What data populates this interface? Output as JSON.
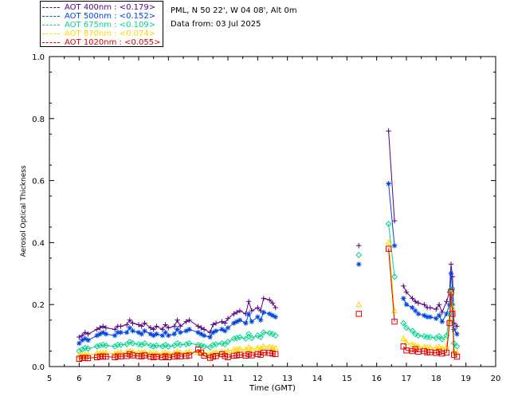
{
  "legend": {
    "items": [
      {
        "label": "AOT  400nm : <0.179>",
        "color": "#55007f"
      },
      {
        "label": "AOT  500nm : <0.152>",
        "color": "#0044dd"
      },
      {
        "label": "AOT  675nm : <0.109>",
        "color": "#00d48c"
      },
      {
        "label": "AOT  870nm : <0.074>",
        "color": "#ffd700"
      },
      {
        "label": "AOT 1020nm : <0.055>",
        "color": "#e00000"
      }
    ]
  },
  "info": {
    "location": "PML, N 50 22', W 04 08', Alt 0m",
    "date": "Data from: 03 Jul 2025"
  },
  "chart_data": {
    "type": "scatter",
    "title": "",
    "xlabel": "Time (GMT)",
    "ylabel": "Aerosol Optical Thickness",
    "xlim": [
      5,
      20
    ],
    "ylim": [
      0,
      1.0
    ],
    "xticks": [
      "5",
      "6",
      "7",
      "8",
      "9",
      "10",
      "11",
      "12",
      "13",
      "14",
      "15",
      "16",
      "17",
      "18",
      "19",
      "20"
    ],
    "yticks": [
      "0.0",
      "0.2",
      "0.4",
      "0.6",
      "0.8",
      "1.0"
    ],
    "grid": false,
    "legend_position": "top-left",
    "segments": [
      [
        6.0,
        12.7
      ],
      [
        15.4,
        15.4
      ],
      [
        16.4,
        16.65
      ],
      [
        16.9,
        18.7
      ]
    ],
    "series": [
      {
        "name": "AOT  400nm : <0.179>",
        "color": "#55007f",
        "marker": "plus",
        "x": [
          6.0,
          6.1,
          6.2,
          6.3,
          6.6,
          6.7,
          6.8,
          6.9,
          7.2,
          7.3,
          7.4,
          7.6,
          7.7,
          7.8,
          8.0,
          8.1,
          8.2,
          8.4,
          8.5,
          8.6,
          8.8,
          8.9,
          9.0,
          9.2,
          9.3,
          9.4,
          9.6,
          9.7,
          10.0,
          10.1,
          10.2,
          10.4,
          10.5,
          10.6,
          10.8,
          10.9,
          11.0,
          11.2,
          11.3,
          11.4,
          11.6,
          11.7,
          11.8,
          12.0,
          12.1,
          12.2,
          12.4,
          12.5,
          12.6,
          15.4,
          16.4,
          16.6,
          16.9,
          17.0,
          17.2,
          17.3,
          17.4,
          17.6,
          17.7,
          17.8,
          18.0,
          18.1,
          18.2,
          18.35,
          18.45,
          18.5,
          18.55,
          18.6,
          18.7
        ],
        "y": [
          0.095,
          0.1,
          0.11,
          0.105,
          0.12,
          0.125,
          0.13,
          0.125,
          0.12,
          0.13,
          0.13,
          0.135,
          0.15,
          0.14,
          0.135,
          0.13,
          0.14,
          0.125,
          0.12,
          0.13,
          0.12,
          0.135,
          0.125,
          0.13,
          0.15,
          0.13,
          0.145,
          0.15,
          0.13,
          0.125,
          0.12,
          0.11,
          0.135,
          0.14,
          0.145,
          0.14,
          0.155,
          0.17,
          0.175,
          0.18,
          0.17,
          0.21,
          0.18,
          0.19,
          0.18,
          0.22,
          0.215,
          0.205,
          0.19,
          0.39,
          0.76,
          0.47,
          0.26,
          0.24,
          0.22,
          0.21,
          0.205,
          0.2,
          0.19,
          0.19,
          0.185,
          0.2,
          0.175,
          0.21,
          0.24,
          0.33,
          0.29,
          0.14,
          0.13
        ]
      },
      {
        "name": "AOT  500nm : <0.152>",
        "color": "#0044dd",
        "marker": "asterisk",
        "x": [
          6.0,
          6.1,
          6.2,
          6.3,
          6.6,
          6.7,
          6.8,
          6.9,
          7.2,
          7.3,
          7.4,
          7.6,
          7.7,
          7.8,
          8.0,
          8.1,
          8.2,
          8.4,
          8.5,
          8.6,
          8.8,
          8.9,
          9.0,
          9.2,
          9.3,
          9.4,
          9.6,
          9.7,
          10.0,
          10.1,
          10.2,
          10.4,
          10.5,
          10.6,
          10.8,
          10.9,
          11.0,
          11.2,
          11.3,
          11.4,
          11.6,
          11.7,
          11.8,
          12.0,
          12.1,
          12.2,
          12.4,
          12.5,
          12.6,
          15.4,
          16.4,
          16.6,
          16.9,
          17.0,
          17.2,
          17.3,
          17.4,
          17.6,
          17.7,
          17.8,
          18.0,
          18.1,
          18.2,
          18.35,
          18.45,
          18.5,
          18.55,
          18.6,
          18.7
        ],
        "y": [
          0.075,
          0.085,
          0.09,
          0.085,
          0.1,
          0.105,
          0.11,
          0.105,
          0.1,
          0.11,
          0.11,
          0.11,
          0.125,
          0.115,
          0.11,
          0.105,
          0.115,
          0.105,
          0.1,
          0.105,
          0.1,
          0.11,
          0.1,
          0.105,
          0.12,
          0.11,
          0.115,
          0.12,
          0.11,
          0.105,
          0.1,
          0.095,
          0.11,
          0.115,
          0.12,
          0.115,
          0.125,
          0.14,
          0.145,
          0.15,
          0.14,
          0.17,
          0.145,
          0.16,
          0.15,
          0.175,
          0.17,
          0.165,
          0.16,
          0.33,
          0.59,
          0.39,
          0.22,
          0.2,
          0.19,
          0.18,
          0.17,
          0.165,
          0.16,
          0.16,
          0.155,
          0.165,
          0.145,
          0.17,
          0.2,
          0.3,
          0.25,
          0.12,
          0.105
        ]
      },
      {
        "name": "AOT  675nm : <0.109>",
        "color": "#00d48c",
        "marker": "diamond",
        "x": [
          6.0,
          6.1,
          6.2,
          6.3,
          6.6,
          6.7,
          6.8,
          6.9,
          7.2,
          7.3,
          7.4,
          7.6,
          7.7,
          7.8,
          8.0,
          8.1,
          8.2,
          8.4,
          8.5,
          8.6,
          8.8,
          8.9,
          9.0,
          9.2,
          9.3,
          9.4,
          9.6,
          9.7,
          10.0,
          10.1,
          10.2,
          10.4,
          10.5,
          10.6,
          10.8,
          10.9,
          11.0,
          11.2,
          11.3,
          11.4,
          11.6,
          11.7,
          11.8,
          12.0,
          12.1,
          12.2,
          12.4,
          12.5,
          12.6,
          15.4,
          16.4,
          16.6,
          16.9,
          17.0,
          17.2,
          17.3,
          17.4,
          17.6,
          17.7,
          17.8,
          18.0,
          18.1,
          18.2,
          18.35,
          18.45,
          18.5,
          18.55,
          18.6,
          18.7
        ],
        "y": [
          0.05,
          0.055,
          0.06,
          0.058,
          0.065,
          0.068,
          0.07,
          0.068,
          0.065,
          0.07,
          0.07,
          0.072,
          0.08,
          0.075,
          0.072,
          0.07,
          0.075,
          0.068,
          0.065,
          0.068,
          0.065,
          0.07,
          0.065,
          0.068,
          0.075,
          0.07,
          0.072,
          0.075,
          0.07,
          0.068,
          0.065,
          0.062,
          0.07,
          0.072,
          0.075,
          0.072,
          0.08,
          0.09,
          0.092,
          0.095,
          0.09,
          0.105,
          0.092,
          0.1,
          0.095,
          0.11,
          0.108,
          0.105,
          0.1,
          0.36,
          0.46,
          0.29,
          0.14,
          0.125,
          0.115,
          0.105,
          0.1,
          0.098,
          0.095,
          0.095,
          0.092,
          0.098,
          0.088,
          0.1,
          0.17,
          0.25,
          0.2,
          0.075,
          0.065
        ]
      },
      {
        "name": "AOT  870nm : <0.074>",
        "color": "#ffd700",
        "marker": "triangle",
        "x": [
          6.0,
          6.1,
          6.2,
          6.3,
          6.6,
          6.7,
          6.8,
          6.9,
          7.2,
          7.3,
          7.4,
          7.6,
          7.7,
          7.8,
          8.0,
          8.1,
          8.2,
          8.4,
          8.5,
          8.6,
          8.8,
          8.9,
          9.0,
          9.2,
          9.3,
          9.4,
          9.6,
          9.7,
          10.0,
          10.1,
          10.2,
          10.4,
          10.5,
          10.6,
          10.8,
          10.9,
          11.0,
          11.2,
          11.3,
          11.4,
          11.6,
          11.7,
          11.8,
          12.0,
          12.1,
          12.2,
          12.4,
          12.5,
          12.6,
          15.4,
          16.4,
          16.6,
          16.9,
          17.0,
          17.2,
          17.3,
          17.4,
          17.6,
          17.7,
          17.8,
          18.0,
          18.1,
          18.2,
          18.35,
          18.45,
          18.5,
          18.55,
          18.6,
          18.7
        ],
        "y": [
          0.035,
          0.038,
          0.04,
          0.038,
          0.042,
          0.044,
          0.045,
          0.044,
          0.042,
          0.045,
          0.045,
          0.046,
          0.05,
          0.048,
          0.046,
          0.045,
          0.048,
          0.044,
          0.042,
          0.044,
          0.042,
          0.045,
          0.042,
          0.044,
          0.048,
          0.045,
          0.046,
          0.048,
          0.045,
          0.044,
          0.042,
          0.04,
          0.045,
          0.046,
          0.048,
          0.046,
          0.05,
          0.055,
          0.056,
          0.058,
          0.055,
          0.062,
          0.056,
          0.06,
          0.058,
          0.065,
          0.064,
          0.062,
          0.06,
          0.2,
          0.4,
          0.18,
          0.09,
          0.078,
          0.072,
          0.068,
          0.065,
          0.064,
          0.062,
          0.062,
          0.06,
          0.064,
          0.058,
          0.065,
          0.15,
          0.24,
          0.19,
          0.05,
          0.045
        ]
      },
      {
        "name": "AOT 1020nm : <0.055>",
        "color": "#e00000",
        "marker": "square",
        "x": [
          6.0,
          6.1,
          6.2,
          6.3,
          6.6,
          6.7,
          6.8,
          6.9,
          7.2,
          7.3,
          7.4,
          7.6,
          7.7,
          7.8,
          8.0,
          8.1,
          8.2,
          8.4,
          8.5,
          8.6,
          8.8,
          8.9,
          9.0,
          9.2,
          9.3,
          9.4,
          9.6,
          9.7,
          10.0,
          10.1,
          10.2,
          10.4,
          10.5,
          10.6,
          10.8,
          10.9,
          11.0,
          11.2,
          11.3,
          11.4,
          11.6,
          11.7,
          11.8,
          12.0,
          12.1,
          12.2,
          12.4,
          12.5,
          12.6,
          15.4,
          16.4,
          16.6,
          16.9,
          17.0,
          17.2,
          17.3,
          17.4,
          17.6,
          17.7,
          17.8,
          18.0,
          18.1,
          18.2,
          18.35,
          18.45,
          18.5,
          18.55,
          18.6,
          18.7
        ],
        "y": [
          0.025,
          0.028,
          0.028,
          0.027,
          0.03,
          0.032,
          0.033,
          0.032,
          0.03,
          0.033,
          0.033,
          0.034,
          0.04,
          0.036,
          0.034,
          0.033,
          0.036,
          0.032,
          0.03,
          0.032,
          0.03,
          0.033,
          0.03,
          0.032,
          0.036,
          0.033,
          0.034,
          0.036,
          0.055,
          0.045,
          0.035,
          0.028,
          0.032,
          0.034,
          0.04,
          0.034,
          0.03,
          0.035,
          0.036,
          0.038,
          0.035,
          0.04,
          0.036,
          0.04,
          0.038,
          0.045,
          0.044,
          0.042,
          0.04,
          0.17,
          0.38,
          0.145,
          0.065,
          0.052,
          0.05,
          0.056,
          0.048,
          0.05,
          0.046,
          0.046,
          0.044,
          0.048,
          0.042,
          0.045,
          0.14,
          0.24,
          0.17,
          0.038,
          0.032
        ]
      }
    ]
  }
}
